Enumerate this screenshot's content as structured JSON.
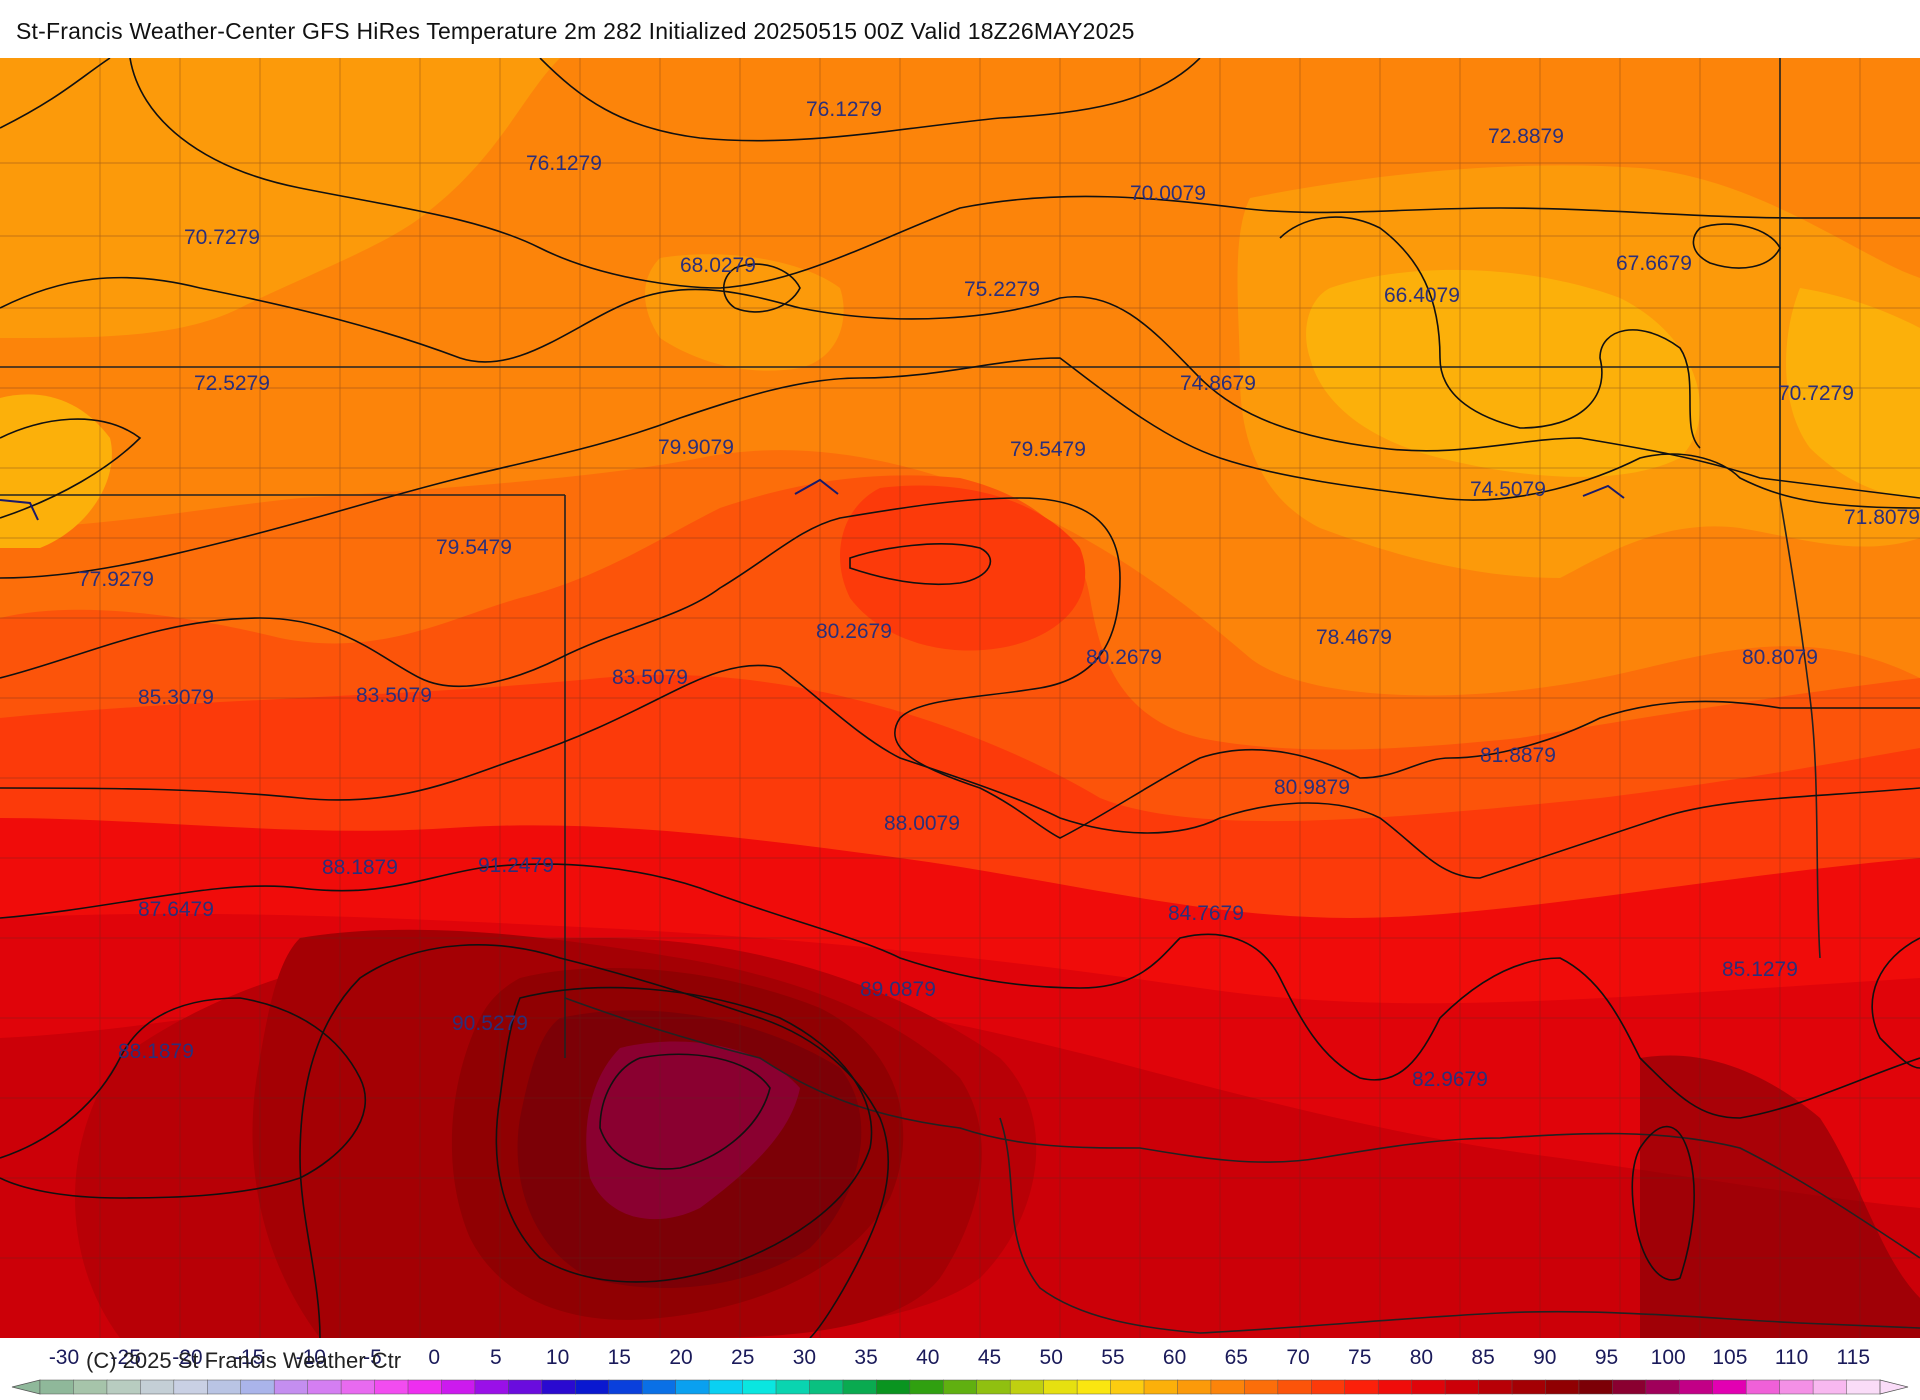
{
  "title": "St-Francis Weather-Center GFS HiRes Temperature 2m  282 Initialized 20250515 00Z Valid 18Z26MAY2025",
  "copyright": "(C) 2025 St Francis Weather Ctr",
  "contour_labels": [
    "76.1279",
    "72.8879",
    "76.1279",
    "70.0079",
    "70.7279",
    "68.0279",
    "75.2279",
    "66.4079",
    "67.6679",
    "72.5279",
    "74.8679",
    "70.7279",
    "79.9079",
    "79.5479",
    "74.5079",
    "71.8079",
    "77.9279",
    "79.5479",
    "80.2679",
    "80.2679",
    "78.4679",
    "80.8079",
    "83.5079",
    "85.3079",
    "83.5079",
    "81.8879",
    "80.9879",
    "88.0079",
    "88.1879",
    "91.2479",
    "87.6479",
    "84.7679",
    "89.0879",
    "85.1279",
    "90.5279",
    "88.1879",
    "82.9679"
  ],
  "colorbar": {
    "ticks": [
      "-30",
      "-25",
      "-20",
      "-15",
      "-10",
      "-5",
      "0",
      "5",
      "10",
      "15",
      "20",
      "25",
      "30",
      "35",
      "40",
      "45",
      "50",
      "55",
      "60",
      "65",
      "70",
      "75",
      "80",
      "85",
      "90",
      "95",
      "100",
      "105",
      "110",
      "115"
    ],
    "colors": [
      "#8fb89a",
      "#a6c4aa",
      "#b8ccc0",
      "#c4cfd6",
      "#c9d0e4",
      "#b9c4e4",
      "#aab4ea",
      "#c48ef0",
      "#d47ef2",
      "#e86af0",
      "#f24cf0",
      "#ee2ef0",
      "#cc1aee",
      "#9a10e8",
      "#6a0cde",
      "#2a0ad0",
      "#0a18d0",
      "#0a40dc",
      "#0a70e6",
      "#0aa0f0",
      "#0ad0f2",
      "#0ae6e0",
      "#0ad4b0",
      "#0ac080",
      "#0aaa50",
      "#0a9420",
      "#30a010",
      "#60b010",
      "#90c010",
      "#c0d010",
      "#e6e010",
      "#fae610",
      "#fccc10",
      "#fcb00a",
      "#fc9a0a",
      "#fc840a",
      "#fc6e0a",
      "#fc540a",
      "#fc3a0a",
      "#fc200a",
      "#f00c0a",
      "#e0040a",
      "#cc0008",
      "#b80006",
      "#a40004",
      "#900002",
      "#7c0006",
      "#8a0030",
      "#a0005a",
      "#c20086",
      "#e200b2",
      "#f060d8",
      "#f490e6",
      "#f8b8f0",
      "#fadcf8"
    ]
  }
}
